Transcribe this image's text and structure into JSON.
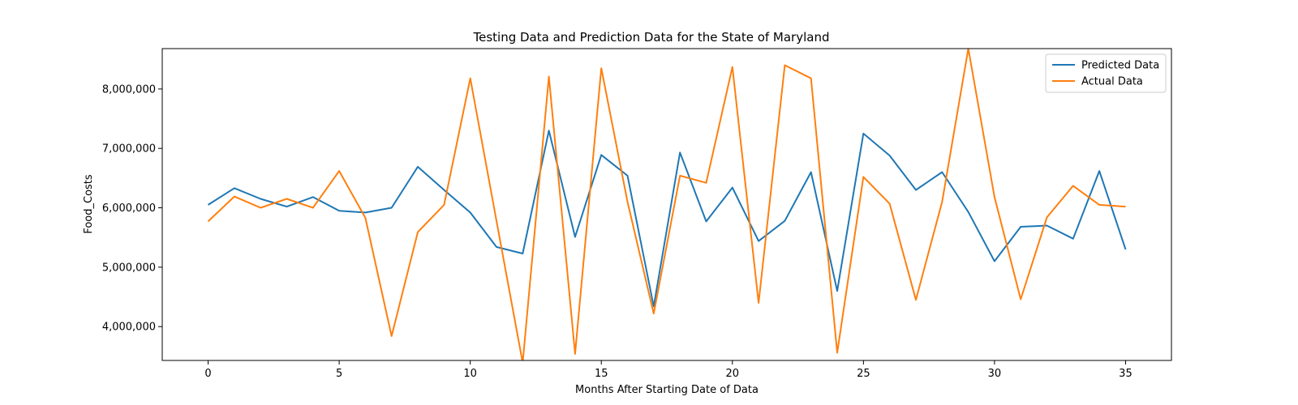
{
  "chart_data": {
    "type": "line",
    "title": "Testing Data and Prediction Data for the State of Maryland",
    "xlabel": "Months After Starting Date of Data",
    "ylabel": "Food_Costs",
    "xlim": [
      -1.75,
      36.75
    ],
    "ylim": [
      3430000,
      8680000
    ],
    "x_ticks": [
      0,
      5,
      10,
      15,
      20,
      25,
      30,
      35
    ],
    "x_tick_labels": [
      "0",
      "5",
      "10",
      "15",
      "20",
      "25",
      "30",
      "35"
    ],
    "y_ticks": [
      4000000,
      5000000,
      6000000,
      7000000,
      8000000
    ],
    "y_tick_labels": [
      "4,000,000",
      "5,000,000",
      "6,000,000",
      "7,000,000",
      "8,000,000"
    ],
    "grid": false,
    "legend_position": "upper right",
    "x": [
      0,
      1,
      2,
      3,
      4,
      5,
      6,
      7,
      8,
      9,
      10,
      11,
      12,
      13,
      14,
      15,
      16,
      17,
      18,
      19,
      20,
      21,
      22,
      23,
      24,
      25,
      26,
      27,
      28,
      29,
      30,
      31,
      32,
      33,
      34,
      35
    ],
    "series": [
      {
        "name": "Predicted Data",
        "color": "#1f77b4",
        "values": [
          6050000,
          6330000,
          6150000,
          6020000,
          6180000,
          5950000,
          5920000,
          6000000,
          6690000,
          6300000,
          5920000,
          5340000,
          5230000,
          7300000,
          5510000,
          6890000,
          6540000,
          4340000,
          6930000,
          5770000,
          6340000,
          5440000,
          5780000,
          6600000,
          4600000,
          7250000,
          6880000,
          6300000,
          6600000,
          5930000,
          5100000,
          5680000,
          5700000,
          5480000,
          6620000,
          5300000
        ]
      },
      {
        "name": "Actual Data",
        "color": "#ff7f0e",
        "values": [
          5770000,
          6190000,
          6000000,
          6150000,
          6000000,
          6620000,
          5830000,
          3840000,
          5590000,
          6050000,
          8180000,
          5780000,
          3390000,
          8210000,
          3540000,
          8350000,
          6100000,
          4220000,
          6540000,
          6420000,
          8370000,
          4400000,
          8400000,
          8180000,
          3560000,
          6520000,
          6070000,
          4450000,
          6100000,
          8680000,
          6180000,
          4460000,
          5840000,
          6370000,
          6050000,
          6020000
        ]
      }
    ]
  }
}
